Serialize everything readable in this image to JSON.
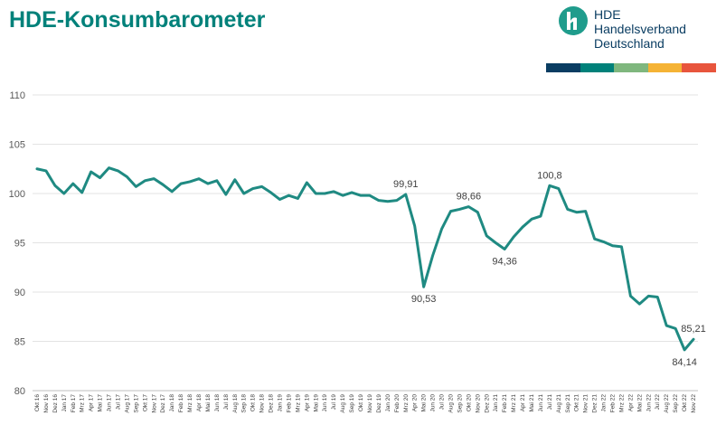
{
  "header": {
    "title": "HDE-Konsumbarometer"
  },
  "logo": {
    "line1": "HDE",
    "line2": "Handelsverband",
    "line3": "Deutschland",
    "mark_color": "#1f9c8c",
    "stripe_colors": [
      "#0a3d62",
      "#00817a",
      "#7fb77e",
      "#f5b335",
      "#e8553d"
    ]
  },
  "chart_data": {
    "type": "line",
    "title": "",
    "xlabel": "",
    "ylabel": "",
    "ylim": [
      80,
      110
    ],
    "yticks": [
      80,
      85,
      90,
      95,
      100,
      105,
      110
    ],
    "grid": true,
    "line_color": "#1f8a82",
    "categories": [
      "Okt 16",
      "Nov 16",
      "Dez 16",
      "Jan 17",
      "Feb 17",
      "Mrz 17",
      "Apr 17",
      "Mai 17",
      "Jun 17",
      "Jul 17",
      "Aug 17",
      "Sep 17",
      "Okt 17",
      "Nov 17",
      "Dez 17",
      "Jan 18",
      "Feb 18",
      "Mrz 18",
      "Apr 18",
      "Mai 18",
      "Jun 18",
      "Jul 18",
      "Aug 18",
      "Sep 18",
      "Okt 18",
      "Nov 18",
      "Dez 18",
      "Jan 19",
      "Feb 19",
      "Mrz 19",
      "Apr 19",
      "Mai 19",
      "Jun 19",
      "Jul 19",
      "Aug 19",
      "Sep 19",
      "Okt 19",
      "Nov 19",
      "Dez 19",
      "Jan 20",
      "Feb 20",
      "Mrz 20",
      "Apr 20",
      "Mai 20",
      "Jun 20",
      "Jul 20",
      "Aug 20",
      "Sep 20",
      "Okt 20",
      "Nov 20",
      "Dez 20",
      "Jan 21",
      "Feb 21",
      "Mrz 21",
      "Apr 21",
      "Mai 21",
      "Jun 21",
      "Jul 21",
      "Aug 21",
      "Sep 21",
      "Okt 21",
      "Nov 21",
      "Dez 21",
      "Jan 22",
      "Feb 22",
      "Mrz 22",
      "Apr 22",
      "Mai 22",
      "Jun 22",
      "Jul 22",
      "Aug 22",
      "Sep 22",
      "Okt 22",
      "Nov 22"
    ],
    "values": [
      102.5,
      102.3,
      100.8,
      100.0,
      101.0,
      100.1,
      102.2,
      101.6,
      102.6,
      102.3,
      101.7,
      100.7,
      101.3,
      101.5,
      100.9,
      100.2,
      101.0,
      101.2,
      101.5,
      101.0,
      101.3,
      99.9,
      101.4,
      100.0,
      100.5,
      100.7,
      100.1,
      99.4,
      99.8,
      99.5,
      101.1,
      100.0,
      100.0,
      100.2,
      99.8,
      100.1,
      99.8,
      99.8,
      99.3,
      99.2,
      99.3,
      99.91,
      96.7,
      90.53,
      93.7,
      96.4,
      98.2,
      98.4,
      98.66,
      98.1,
      95.7,
      95.0,
      94.36,
      95.6,
      96.6,
      97.4,
      97.7,
      100.8,
      100.5,
      98.4,
      98.1,
      98.2,
      95.4,
      95.1,
      94.7,
      94.6,
      89.6,
      88.8,
      89.6,
      89.5,
      86.6,
      86.3,
      84.14,
      85.21
    ],
    "data_labels": [
      {
        "index": 41,
        "text": "99,91",
        "pos": "above"
      },
      {
        "index": 43,
        "text": "90,53",
        "pos": "below"
      },
      {
        "index": 48,
        "text": "98,66",
        "pos": "above"
      },
      {
        "index": 52,
        "text": "94,36",
        "pos": "below"
      },
      {
        "index": 57,
        "text": "100,8",
        "pos": "above"
      },
      {
        "index": 72,
        "text": "84,14",
        "pos": "below"
      },
      {
        "index": 73,
        "text": "85,21",
        "pos": "above"
      }
    ]
  }
}
